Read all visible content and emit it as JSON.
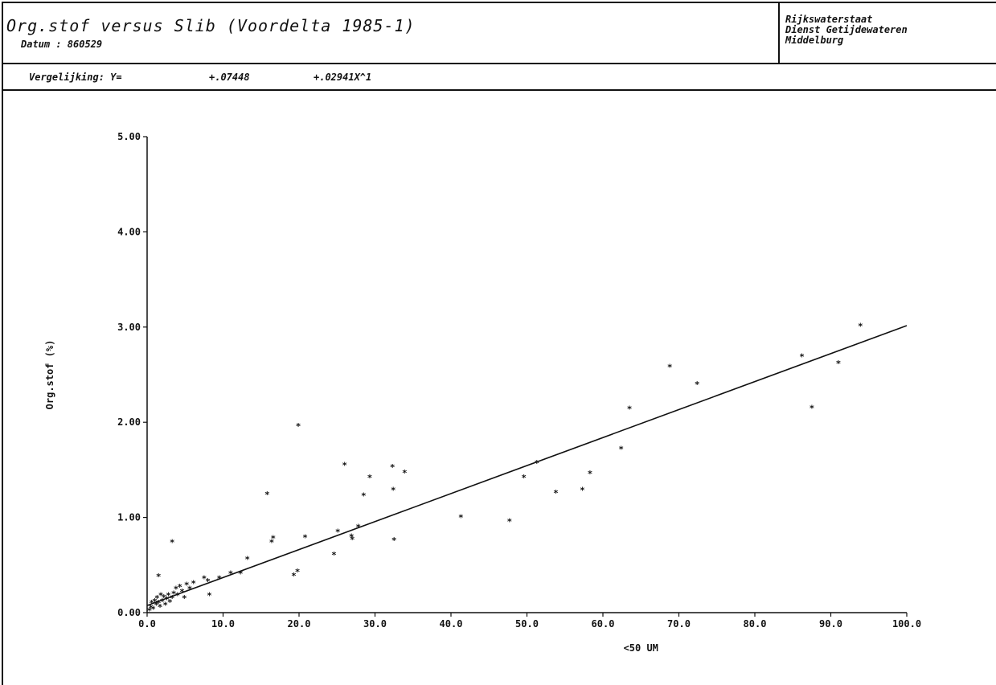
{
  "header": {
    "title": "Org.stof versus Slib (Voordelta 1985-1)",
    "datum": "Datum : 860529",
    "org_lines": [
      "Rijkswaterstaat",
      "Dienst Getijdewateren",
      "Middelburg"
    ],
    "equation_label": "Vergelijking: Y=",
    "coef_a": "+.07448",
    "coef_b": "+.02941X^1"
  },
  "chart_data": {
    "type": "scatter",
    "title": "Org.stof versus Slib (Voordelta 1985-1)",
    "xlabel": "<50 UM",
    "ylabel": "Org.stof (%)",
    "xlim": [
      0,
      100
    ],
    "ylim": [
      0,
      5
    ],
    "x_ticks": [
      "0.0",
      "10.0",
      "20.0",
      "30.0",
      "40.0",
      "50.0",
      "60.0",
      "70.0",
      "80.0",
      "90.0",
      "100.0"
    ],
    "y_ticks": [
      "0.00",
      "1.00",
      "2.00",
      "3.00",
      "4.00",
      "5.00"
    ],
    "marker": "*",
    "fit_line": {
      "intercept": 0.07448,
      "slope": 0.02941,
      "x_range": [
        0,
        100
      ]
    },
    "points": [
      [
        0.3,
        0.02
      ],
      [
        0.5,
        0.05
      ],
      [
        0.6,
        0.1
      ],
      [
        0.8,
        0.04
      ],
      [
        1.0,
        0.12
      ],
      [
        1.2,
        0.08
      ],
      [
        1.3,
        0.15
      ],
      [
        1.5,
        0.1
      ],
      [
        1.7,
        0.06
      ],
      [
        1.8,
        0.18
      ],
      [
        2.0,
        0.12
      ],
      [
        2.2,
        0.16
      ],
      [
        2.4,
        0.08
      ],
      [
        2.6,
        0.14
      ],
      [
        2.8,
        0.18
      ],
      [
        3.0,
        0.11
      ],
      [
        3.3,
        0.15
      ],
      [
        3.5,
        0.2
      ],
      [
        3.8,
        0.25
      ],
      [
        4.0,
        0.18
      ],
      [
        4.3,
        0.27
      ],
      [
        4.6,
        0.22
      ],
      [
        4.9,
        0.15
      ],
      [
        5.2,
        0.29
      ],
      [
        5.6,
        0.25
      ],
      [
        6.1,
        0.31
      ],
      [
        1.5,
        0.38
      ],
      [
        3.3,
        0.74
      ],
      [
        7.5,
        0.36
      ],
      [
        8.0,
        0.33
      ],
      [
        8.2,
        0.18
      ],
      [
        9.5,
        0.36
      ],
      [
        11.0,
        0.41
      ],
      [
        12.3,
        0.41
      ],
      [
        13.2,
        0.56
      ],
      [
        15.8,
        1.24
      ],
      [
        16.4,
        0.74
      ],
      [
        16.6,
        0.78
      ],
      [
        19.3,
        0.39
      ],
      [
        19.8,
        0.43
      ],
      [
        19.9,
        1.96
      ],
      [
        20.8,
        0.79
      ],
      [
        24.6,
        0.61
      ],
      [
        25.1,
        0.85
      ],
      [
        26.0,
        1.55
      ],
      [
        26.9,
        0.8
      ],
      [
        27.0,
        0.77
      ],
      [
        27.8,
        0.9
      ],
      [
        28.5,
        1.23
      ],
      [
        29.3,
        1.42
      ],
      [
        32.3,
        1.53
      ],
      [
        32.4,
        1.29
      ],
      [
        32.5,
        0.76
      ],
      [
        33.9,
        1.47
      ],
      [
        41.3,
        1.0
      ],
      [
        47.7,
        0.96
      ],
      [
        49.6,
        1.42
      ],
      [
        51.3,
        1.57
      ],
      [
        53.8,
        1.26
      ],
      [
        57.3,
        1.29
      ],
      [
        58.3,
        1.46
      ],
      [
        62.4,
        1.72
      ],
      [
        63.5,
        2.14
      ],
      [
        68.8,
        2.58
      ],
      [
        72.4,
        2.4
      ],
      [
        86.2,
        2.69
      ],
      [
        87.5,
        2.15
      ],
      [
        91.0,
        2.62
      ],
      [
        93.9,
        3.01
      ]
    ]
  }
}
